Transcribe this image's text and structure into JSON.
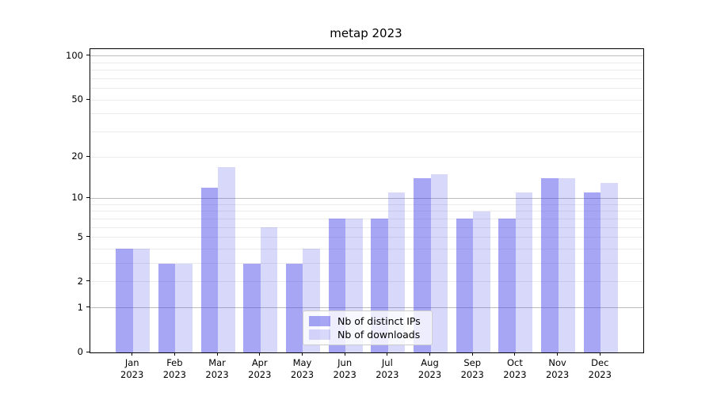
{
  "title": "metap 2023",
  "chart_data": {
    "type": "bar",
    "title": "metap 2023",
    "categories": [
      "Jan 2023",
      "Feb 2023",
      "Mar 2023",
      "Apr 2023",
      "May 2023",
      "Jun 2023",
      "Jul 2023",
      "Aug 2023",
      "Sep 2023",
      "Oct 2023",
      "Nov 2023",
      "Dec 2023"
    ],
    "month_labels": [
      "Jan",
      "Feb",
      "Mar",
      "Apr",
      "May",
      "Jun",
      "Jul",
      "Aug",
      "Sep",
      "Oct",
      "Nov",
      "Dec"
    ],
    "year_label": "2023",
    "series": [
      {
        "name": "Nb of distinct IPs",
        "values": [
          4,
          3,
          12,
          3,
          3,
          7,
          7,
          14,
          7,
          7,
          14,
          11
        ],
        "color": "rgba(70,70,233,0.48)"
      },
      {
        "name": "Nb of downloads",
        "values": [
          4,
          3,
          17,
          6,
          4,
          7,
          11,
          15,
          8,
          11,
          14,
          13
        ],
        "color": "rgba(70,70,233,0.21)"
      }
    ],
    "xlabel": "",
    "ylabel": "",
    "yscale": "log1p",
    "ylim": [
      0,
      112
    ],
    "ytick_values": [
      0,
      1,
      2,
      5,
      10,
      20,
      50,
      100
    ],
    "ytick_labels": [
      "0",
      "1",
      "2",
      "5",
      "10",
      "20",
      "50",
      "100"
    ],
    "minor_grid_values": [
      2,
      3,
      4,
      5,
      6,
      7,
      8,
      9,
      20,
      30,
      40,
      50,
      60,
      70,
      80,
      90
    ],
    "major_grid_values": [
      1,
      10,
      100
    ],
    "grid": true,
    "legend_position": "lower center",
    "colors": {
      "major_grid": "#bdbdbd",
      "minor_grid": "#ebebeb",
      "spine": "#000000",
      "background": "#ffffff"
    }
  }
}
